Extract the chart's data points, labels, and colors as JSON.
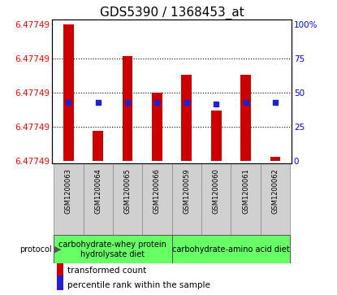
{
  "title": "GDS5390 / 1368453_at",
  "samples": [
    "GSM1200063",
    "GSM1200064",
    "GSM1200065",
    "GSM1200066",
    "GSM1200059",
    "GSM1200060",
    "GSM1200061",
    "GSM1200062"
  ],
  "bar_heights": [
    1.0,
    0.22,
    0.77,
    0.5,
    0.63,
    0.37,
    0.63,
    0.03
  ],
  "percentile_ranks": [
    0.43,
    0.43,
    0.43,
    0.43,
    0.43,
    0.42,
    0.43,
    0.43
  ],
  "y_tick_positions": [
    0.0,
    0.25,
    0.5,
    0.75,
    1.0
  ],
  "right_y_labels": [
    "0",
    "25",
    "50",
    "75",
    "100%"
  ],
  "group1_label": "carbohydrate-whey protein\nhydrolysate diet",
  "group2_label": "carbohydrate-amino acid diet",
  "group1_samples": 4,
  "group2_samples": 4,
  "bar_color": "#cc0000",
  "percentile_color": "#2222cc",
  "group1_bg": "#66ff66",
  "group2_bg": "#66ff66",
  "sample_bg": "#d0d0d0",
  "protocol_label": "protocol",
  "legend_bar_label": "transformed count",
  "legend_pct_label": "percentile rank within the sample",
  "title_fontsize": 11,
  "tick_fontsize": 7.5,
  "sample_fontsize": 6,
  "protocol_fontsize": 7,
  "legend_fontsize": 7.5,
  "arrow": "▶"
}
